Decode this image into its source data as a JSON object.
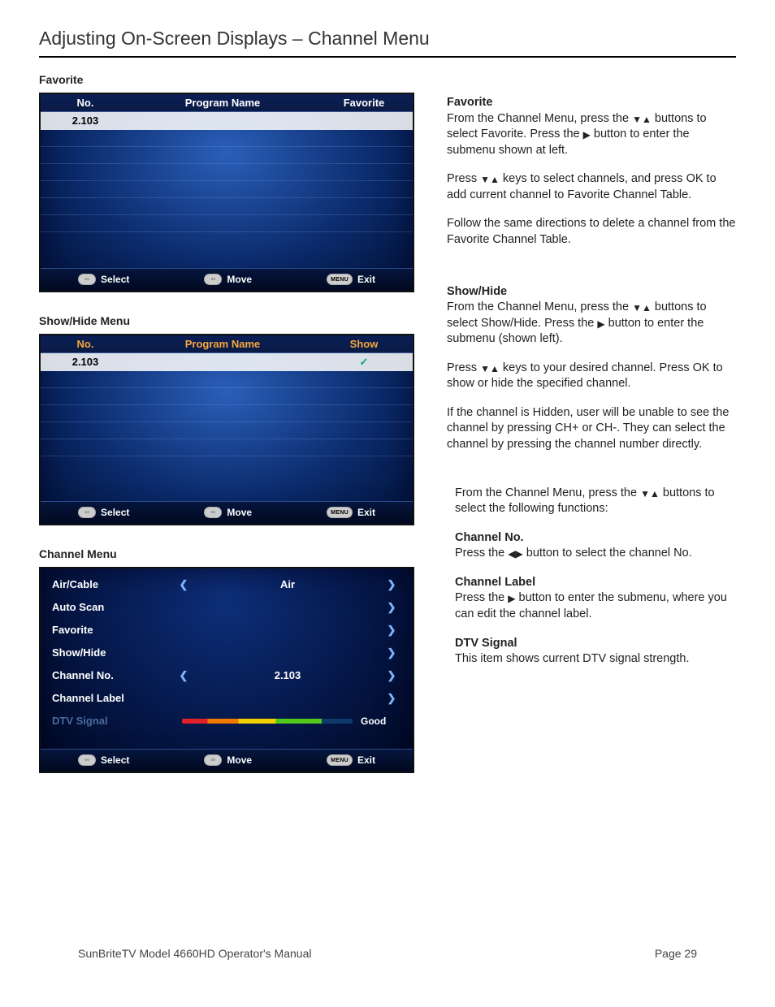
{
  "page": {
    "title": "Adjusting On-Screen Displays – Channel Menu",
    "footer_left": "SunBriteTV Model 4660HD Operator's Manual",
    "footer_right": "Page 29"
  },
  "glyphs": {
    "down": "▼",
    "up": "▲",
    "right": "▶",
    "left": "◀",
    "arrow_l": "❮",
    "arrow_r": "❯",
    "check": "✓",
    "updown_icon": "◦◦",
    "leftright_icon": "◦◦"
  },
  "labels": {
    "favorite_section": "Favorite",
    "showhide_section": "Show/Hide Menu",
    "channel_menu_section": "Channel Menu"
  },
  "favorite_screen": {
    "headers": {
      "no": "No.",
      "program": "Program Name",
      "fav": "Favorite"
    },
    "row": {
      "no": "2.103",
      "program": "",
      "fav": ""
    },
    "footer": {
      "select": "Select",
      "move": "Move",
      "menu": "MENU",
      "exit": "Exit"
    }
  },
  "showhide_screen": {
    "headers": {
      "no": "No.",
      "program": "Program Name",
      "show": "Show"
    },
    "row": {
      "no": "2.103",
      "program": "",
      "show_checked": "✓"
    },
    "footer": {
      "select": "Select",
      "move": "Move",
      "menu": "MENU",
      "exit": "Exit"
    }
  },
  "channel_menu_screen": {
    "rows": [
      {
        "label": "Air/Cable",
        "left": true,
        "value": "Air",
        "right": true
      },
      {
        "label": "Auto Scan",
        "left": false,
        "value": "",
        "right": true
      },
      {
        "label": "Favorite",
        "left": false,
        "value": "",
        "right": true
      },
      {
        "label": "Show/Hide",
        "left": false,
        "value": "",
        "right": true
      },
      {
        "label": "Channel No.",
        "left": true,
        "value": "2.103",
        "right": true
      },
      {
        "label": "Channel Label",
        "left": false,
        "value": "",
        "right": true
      }
    ],
    "signal": {
      "label": "DTV Signal",
      "value": "Good"
    },
    "footer": {
      "select": "Select",
      "move": "Move",
      "menu": "MENU",
      "exit": "Exit"
    }
  },
  "right": {
    "fav_title": "Favorite",
    "fav_p1a": "From the Channel Menu, press the ",
    "fav_p1b": " buttons to select Favorite. Press the ",
    "fav_p1c": " button to enter the submenu shown at left.",
    "fav_p2a": "Press ",
    "fav_p2b": " keys to select channels, and press  OK to add current channel to Favorite Channel Table.",
    "fav_p3": "Follow the same directions to delete a channel from the Favorite Channel Table.",
    "sh_title": "Show/Hide",
    "sh_p1a": "From the Channel Menu, press the ",
    "sh_p1b": " buttons to select Show/Hide. Press the ",
    "sh_p1c": " button to enter the submenu (shown left).",
    "sh_p2a": "Press ",
    "sh_p2b": " keys to your desired channel. Press OK to show or hide the specified channel.",
    "sh_p3": "If the channel is Hidden, user will be unable to see the channel by pressing CH+ or CH-. They can select the channel by pressing the channel number directly.",
    "cm_p1a": "From the Channel Menu, press the ",
    "cm_p1b": " buttons to select the following functions:",
    "cm_chno_title": "Channel No.",
    "cm_chno_p_a": "Press the ",
    "cm_chno_p_b": " button to select the channel No.",
    "cm_chlabel_title": "Channel Label",
    "cm_chlabel_p_a": "Press the ",
    "cm_chlabel_p_b": " button to enter the submenu, where you can edit the channel label.",
    "cm_dtv_title": "DTV Signal",
    "cm_dtv_p": "This item shows current DTV signal strength."
  }
}
